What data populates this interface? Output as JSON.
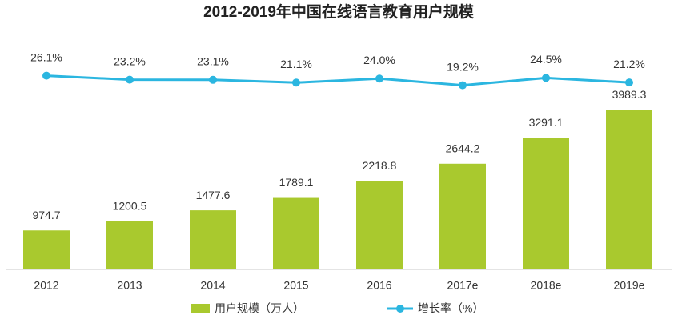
{
  "chart_data": {
    "type": "bar-line",
    "title": "2012-2019年中国在线语言教育用户规模",
    "categories": [
      "2012",
      "2013",
      "2014",
      "2015",
      "2016",
      "2017e",
      "2018e",
      "2019e"
    ],
    "series": [
      {
        "name": "用户规模（万人）",
        "type": "bar",
        "color": "#a9c92e",
        "values": [
          974.7,
          1200.5,
          1477.6,
          1789.1,
          2218.8,
          2644.2,
          3291.1,
          3989.3
        ]
      },
      {
        "name": "增长率（%）",
        "type": "line",
        "axis": "y2",
        "color": "#2bb6e0",
        "values": [
          26.1,
          23.2,
          23.1,
          21.1,
          24.0,
          19.2,
          24.5,
          21.2
        ],
        "value_labels": [
          "26.1%",
          "23.2%",
          "23.1%",
          "21.1%",
          "24.0%",
          "19.2%",
          "24.5%",
          "21.2%"
        ]
      }
    ]
  }
}
